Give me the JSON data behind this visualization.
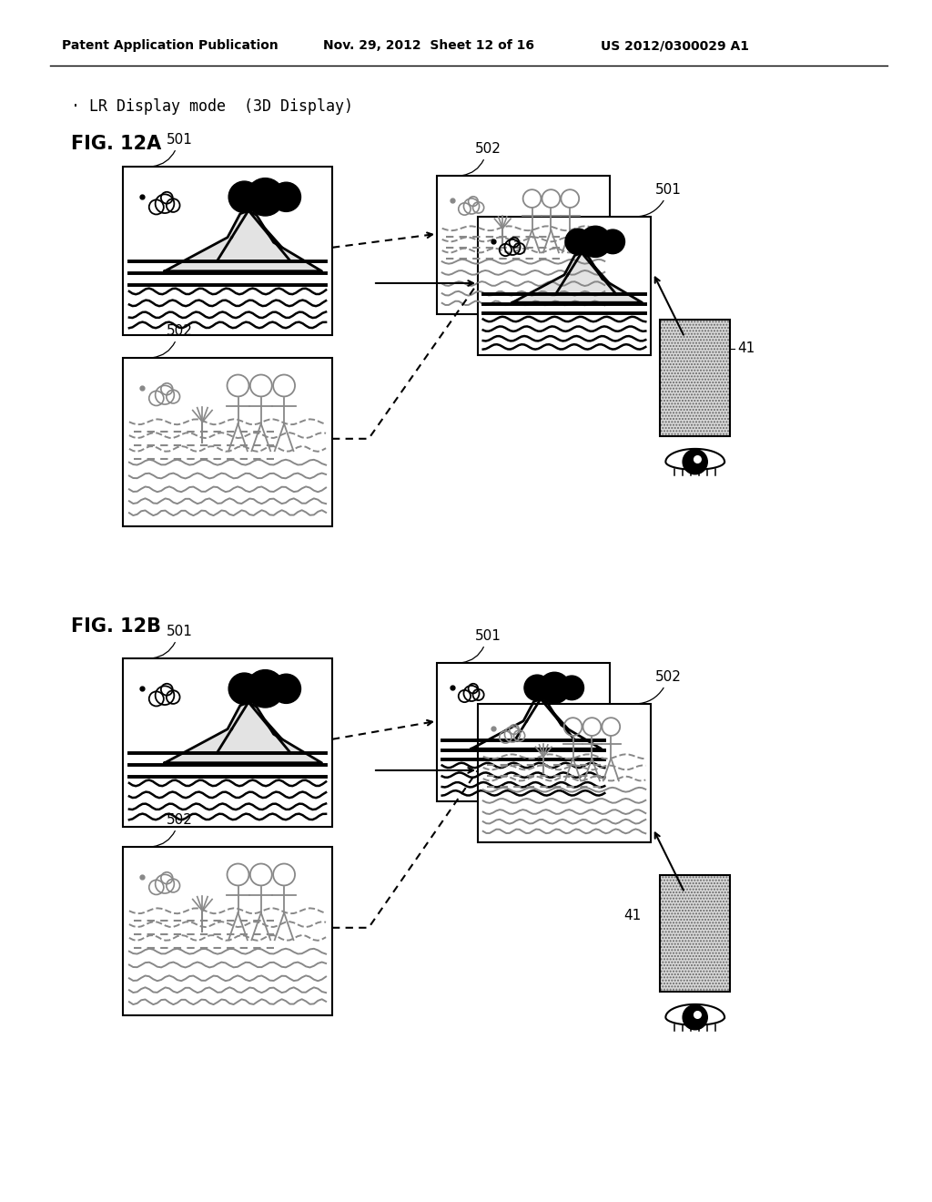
{
  "bg_color": "#ffffff",
  "header_left": "Patent Application Publication",
  "header_mid": "Nov. 29, 2012  Sheet 12 of 16",
  "header_right": "US 2012/0300029 A1",
  "mode_label": "· LR Display mode  (3D Display)",
  "fig12a_label": "FIG. 12A",
  "fig12b_label": "FIG. 12B",
  "label_501": "501",
  "label_502": "502",
  "label_41": "41"
}
